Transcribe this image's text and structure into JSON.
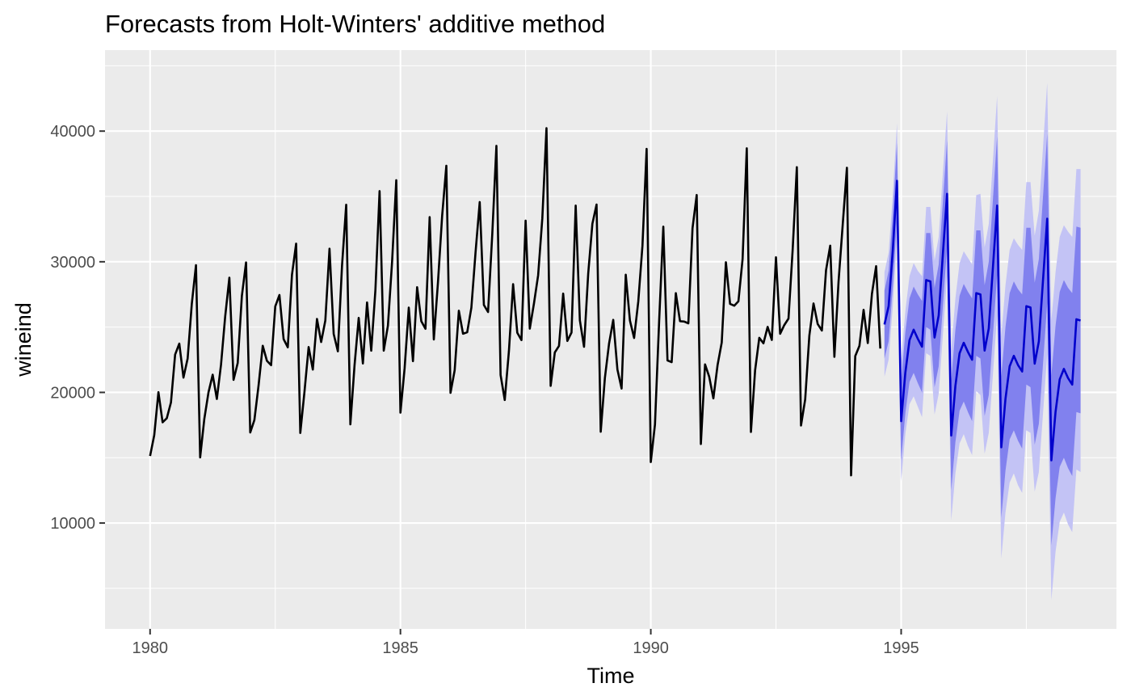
{
  "chart_data": {
    "type": "line",
    "title": "Forecasts from Holt-Winters' additive method",
    "xlabel": "Time",
    "ylabel": "wineind",
    "xlim": [
      1979.1,
      1999.3
    ],
    "ylim": [
      1900,
      46200
    ],
    "x_ticks": [
      1980,
      1985,
      1990,
      1995
    ],
    "x_tick_labels": [
      "1980",
      "1985",
      "1990",
      "1995"
    ],
    "y_ticks": [
      10000,
      20000,
      30000,
      40000
    ],
    "y_tick_labels": [
      "10000",
      "20000",
      "30000",
      "40000"
    ],
    "grid": true,
    "legend": "none",
    "colors": {
      "panel": "#ebebeb",
      "observed": "#000000",
      "forecast": "#0000cc",
      "band_95": "#c3c3f5",
      "band_80": "#8181ee"
    },
    "series": [
      {
        "key": "observed",
        "start": 1980.0,
        "frequency": 12,
        "values": [
          15136,
          16733,
          20016,
          17708,
          18019,
          19227,
          22893,
          23739,
          21133,
          22591,
          26786,
          29740,
          15028,
          17977,
          20008,
          21354,
          19498,
          22125,
          25817,
          28779,
          20960,
          22254,
          27392,
          29945,
          16933,
          17892,
          20533,
          23569,
          22417,
          22084,
          26580,
          27454,
          24081,
          23451,
          28991,
          31386,
          16896,
          20045,
          23471,
          21747,
          25621,
          23859,
          25500,
          30998,
          24475,
          23145,
          29701,
          34365,
          17556,
          22077,
          25702,
          22214,
          26886,
          23191,
          27831,
          35406,
          23195,
          25110,
          30009,
          36242,
          18450,
          21845,
          26488,
          22394,
          28057,
          25451,
          24872,
          33424,
          24052,
          28449,
          33533,
          37351,
          19969,
          21701,
          26249,
          24493,
          24603,
          26485,
          30723,
          34569,
          26689,
          26157,
          32064,
          38870,
          21337,
          19419,
          23166,
          28286,
          24570,
          24001,
          33151,
          24878,
          26804,
          28967,
          33311,
          40226,
          20504,
          23060,
          23562,
          27562,
          23940,
          24584,
          34303,
          25517,
          23494,
          29095,
          32903,
          34379,
          16991,
          21109,
          23740,
          25552,
          21752,
          20294,
          29009,
          25500,
          24166,
          26960,
          31222,
          38641,
          14672,
          17543,
          25453,
          32683,
          22449,
          22316,
          27595,
          25451,
          25421,
          25288,
          32568,
          35110,
          16052,
          22146,
          21198,
          19543,
          22084,
          23816,
          29961,
          26773,
          26635,
          26972,
          30207,
          38687,
          16974,
          21697,
          24179,
          23757,
          25013,
          24019,
          30345,
          24488,
          25156,
          25650,
          30923,
          37240,
          17466,
          19463,
          24352,
          26805,
          25236,
          24735,
          29356,
          31234,
          22724,
          28496,
          32857,
          37198,
          13652,
          22784,
          23565,
          26323,
          23779,
          27549,
          29660,
          23356
        ]
      },
      {
        "key": "forecast",
        "start": 1994.6667,
        "frequency": 12,
        "mean": [
          25200,
          26600,
          30900,
          36200,
          17800,
          21500,
          24000,
          24800,
          24100,
          23500,
          28600,
          28500,
          24200,
          25900,
          30600,
          35200,
          16700,
          20500,
          23000,
          23800,
          23100,
          22500,
          27600,
          27500,
          23200,
          24900,
          29600,
          34300,
          15800,
          19500,
          22000,
          22800,
          22100,
          21600,
          26600,
          26500,
          22200,
          23900,
          28600,
          33300,
          14800,
          18500,
          21000,
          21800,
          21100,
          20600,
          25600,
          25500
        ],
        "lo80": [
          22600,
          23900,
          28100,
          33300,
          14800,
          18400,
          20800,
          21500,
          20700,
          20000,
          25000,
          24800,
          20400,
          22000,
          26600,
          31100,
          12500,
          16200,
          18600,
          19300,
          18500,
          17800,
          22800,
          22600,
          18200,
          19800,
          24400,
          29000,
          10400,
          14000,
          16400,
          17100,
          16300,
          15700,
          20600,
          20400,
          16000,
          17600,
          22200,
          26800,
          8300,
          11900,
          14300,
          15000,
          14200,
          13600,
          18500,
          18400
        ],
        "hi80": [
          27800,
          29300,
          33700,
          39100,
          20800,
          24600,
          27200,
          28100,
          27500,
          27000,
          32200,
          32200,
          28000,
          29800,
          34600,
          39300,
          20900,
          24800,
          27400,
          28300,
          27700,
          27200,
          32400,
          32400,
          28200,
          30000,
          34800,
          39600,
          21200,
          25000,
          27600,
          28500,
          27900,
          27500,
          32600,
          32600,
          28400,
          30200,
          35000,
          39800,
          21300,
          25100,
          27700,
          28600,
          28000,
          27600,
          32700,
          32600
        ],
        "lo95": [
          21200,
          22500,
          26600,
          31800,
          13200,
          16800,
          19100,
          19700,
          18900,
          18100,
          23000,
          22800,
          18300,
          19900,
          24400,
          28900,
          10200,
          13800,
          16100,
          16800,
          15900,
          15200,
          20100,
          19800,
          15300,
          16900,
          21400,
          25900,
          7300,
          10800,
          13100,
          13800,
          12900,
          12300,
          17100,
          16900,
          12400,
          13900,
          18400,
          22900,
          4100,
          7800,
          10100,
          10800,
          9900,
          9300,
          14100,
          13900
        ],
        "hi95": [
          29200,
          30700,
          35200,
          40600,
          22400,
          26200,
          28900,
          29900,
          29300,
          28900,
          34200,
          34200,
          30100,
          31900,
          36800,
          41500,
          23200,
          27200,
          29900,
          30800,
          30300,
          29800,
          35100,
          35200,
          31100,
          32900,
          37800,
          42700,
          24300,
          28200,
          30900,
          31800,
          31300,
          30900,
          36100,
          36100,
          32000,
          33900,
          38800,
          43700,
          25500,
          29200,
          31900,
          32800,
          32300,
          31900,
          37100,
          37100
        ]
      }
    ]
  }
}
